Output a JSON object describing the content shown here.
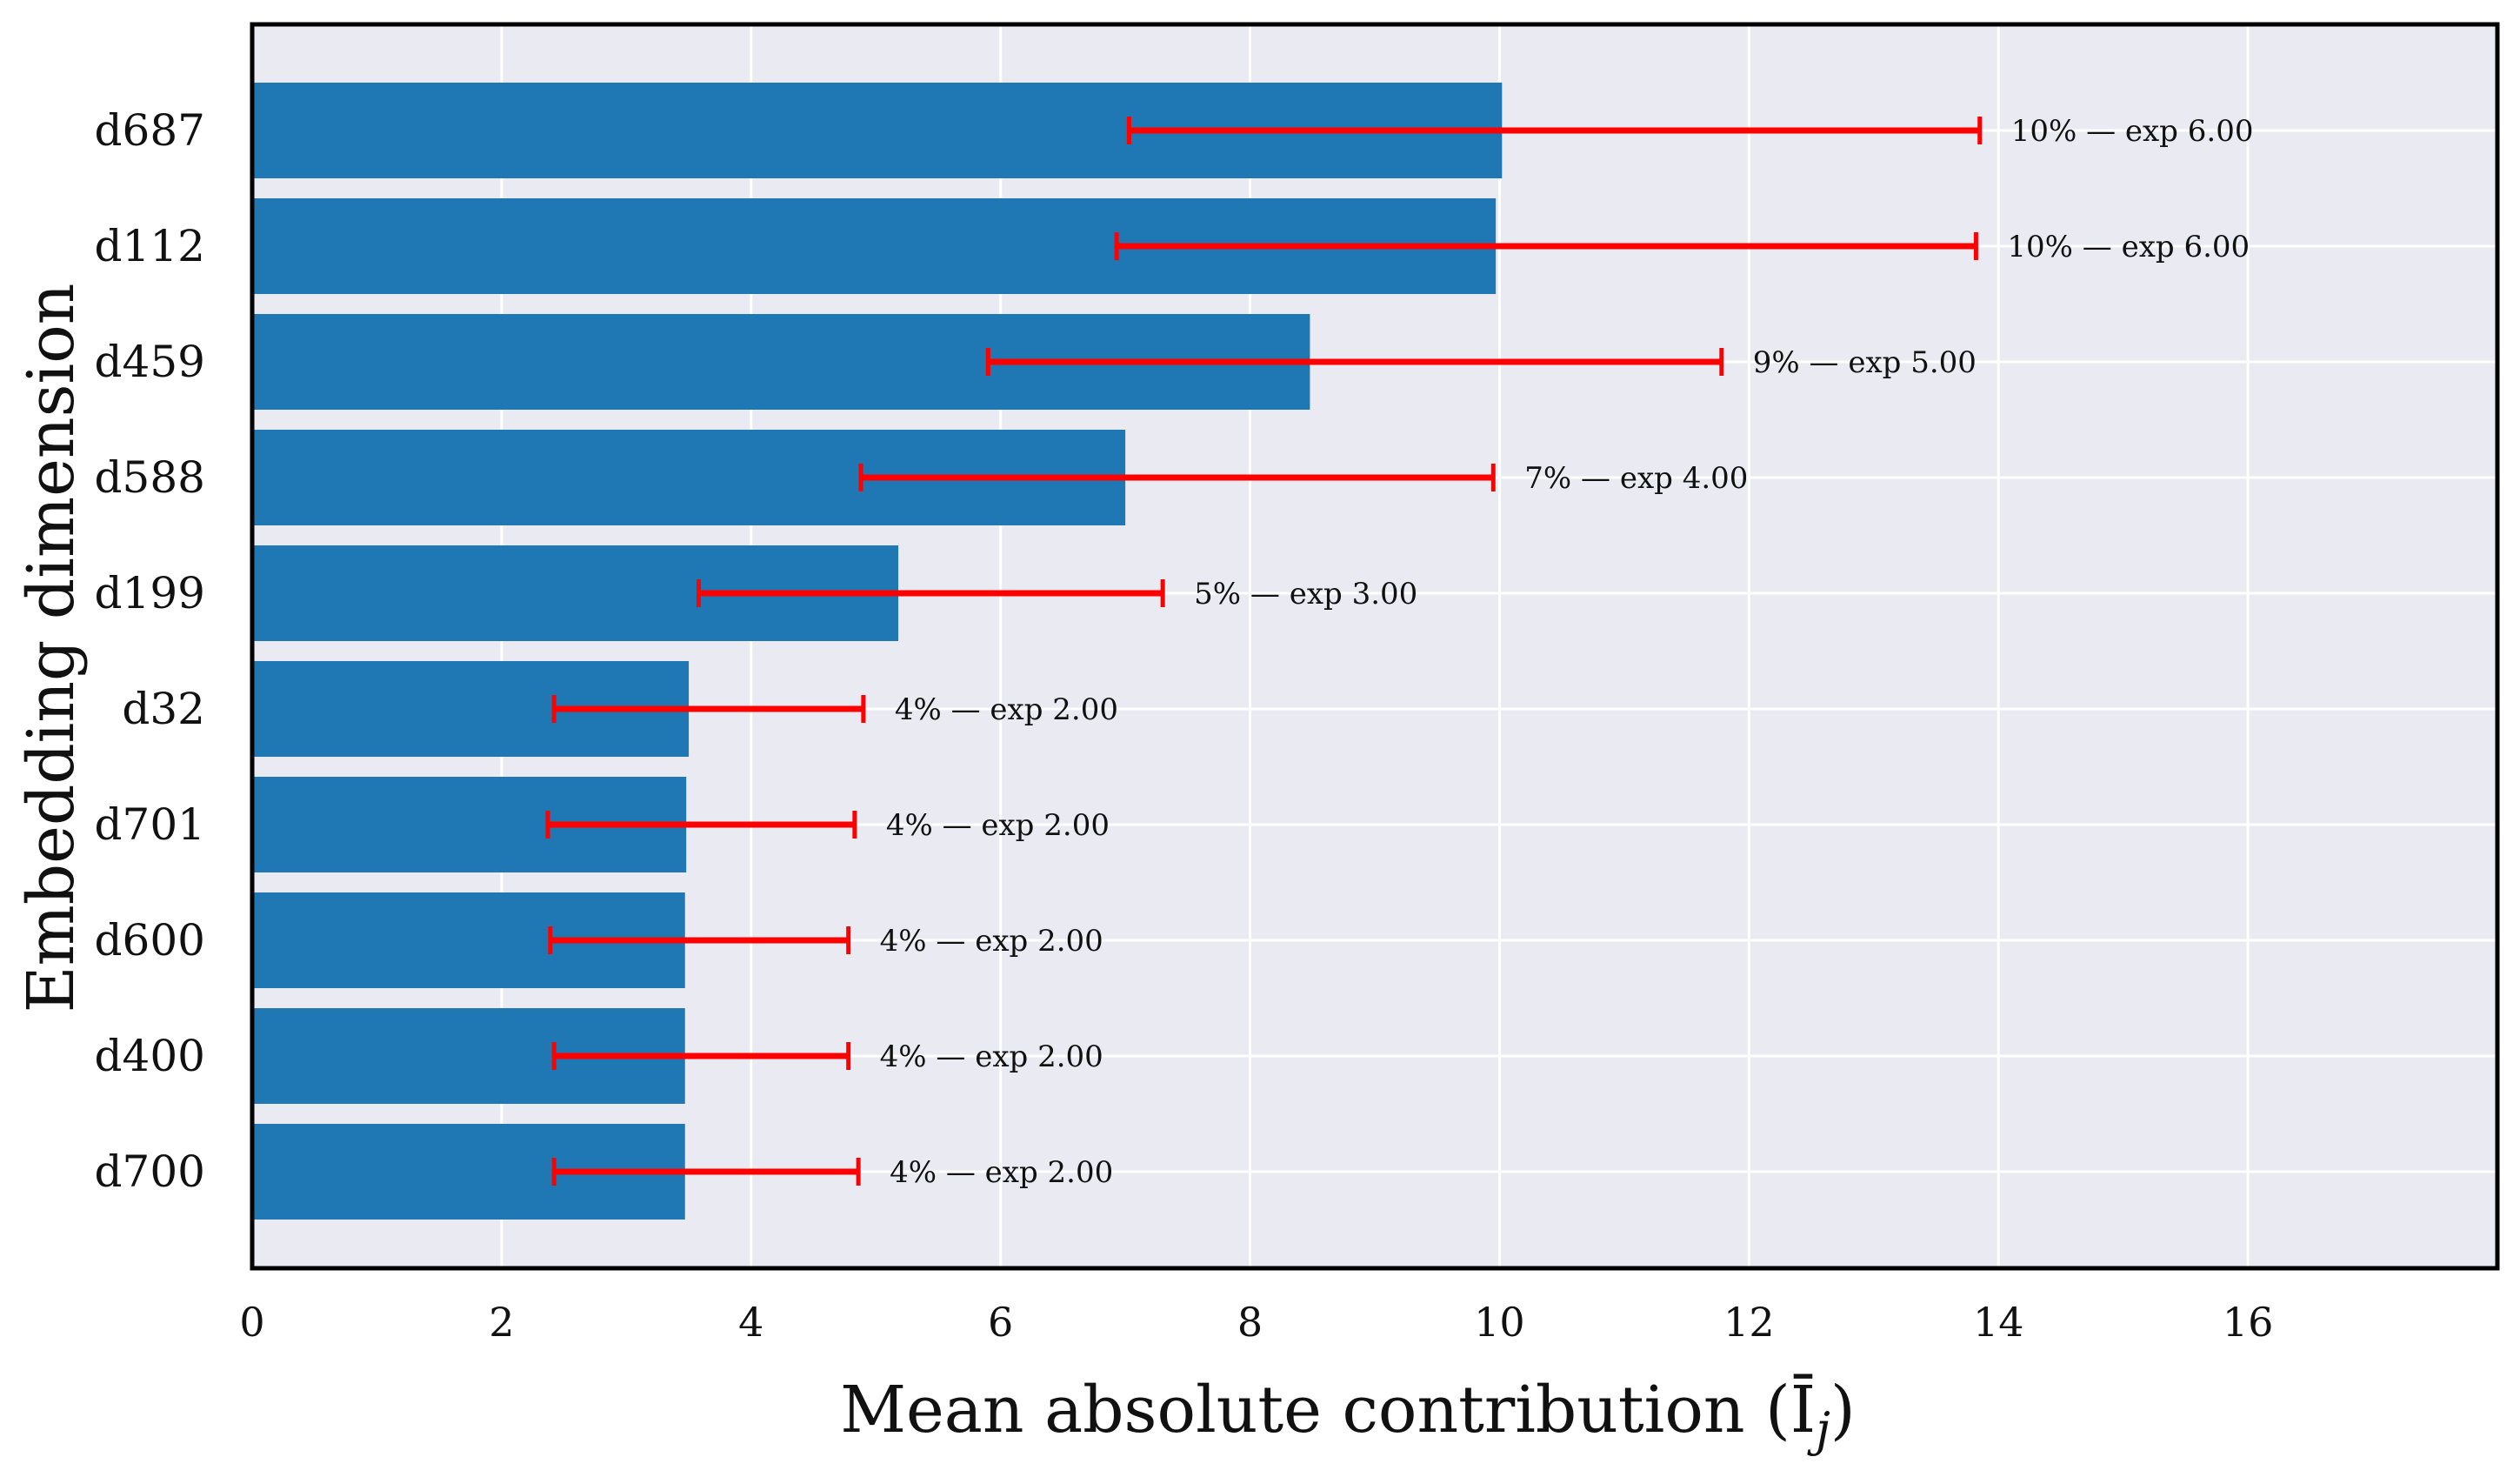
{
  "chart_data": {
    "type": "bar",
    "orientation": "horizontal",
    "title": "",
    "xlabel": "Mean absolute contribution (Ī",
    "xlabel_subscript": "j",
    "xlabel_suffix": ")",
    "ylabel": "Embedding dimension",
    "xlim": [
      0,
      18
    ],
    "xticks": [
      0,
      2,
      4,
      6,
      8,
      10,
      12,
      14,
      16
    ],
    "grid": true,
    "colors": {
      "bar": "#1f77b4",
      "error": "#ff0000",
      "plot_background": "#eaeaf2",
      "grid": "#ffffff",
      "frame": "#000000"
    },
    "categories": [
      "d687",
      "d112",
      "d459",
      "d588",
      "d199",
      "d32",
      "d701",
      "d600",
      "d400",
      "d700"
    ],
    "values": [
      10.02,
      9.97,
      8.48,
      7.0,
      5.18,
      3.5,
      3.48,
      3.47,
      3.47,
      3.47
    ],
    "error_low": [
      7.03,
      6.93,
      5.9,
      4.88,
      3.58,
      2.42,
      2.37,
      2.39,
      2.42,
      2.42
    ],
    "error_high": [
      13.85,
      13.82,
      11.78,
      9.95,
      7.3,
      4.9,
      4.83,
      4.78,
      4.78,
      4.86
    ],
    "annotations": [
      "10% — exp 6.00",
      "10% — exp 6.00",
      "9% — exp 5.00",
      "7% — exp 4.00",
      "5% — exp 3.00",
      "4% — exp 2.00",
      "4% — exp 2.00",
      "4% — exp 2.00",
      "4% — exp 2.00",
      "4% — exp 2.00"
    ]
  }
}
